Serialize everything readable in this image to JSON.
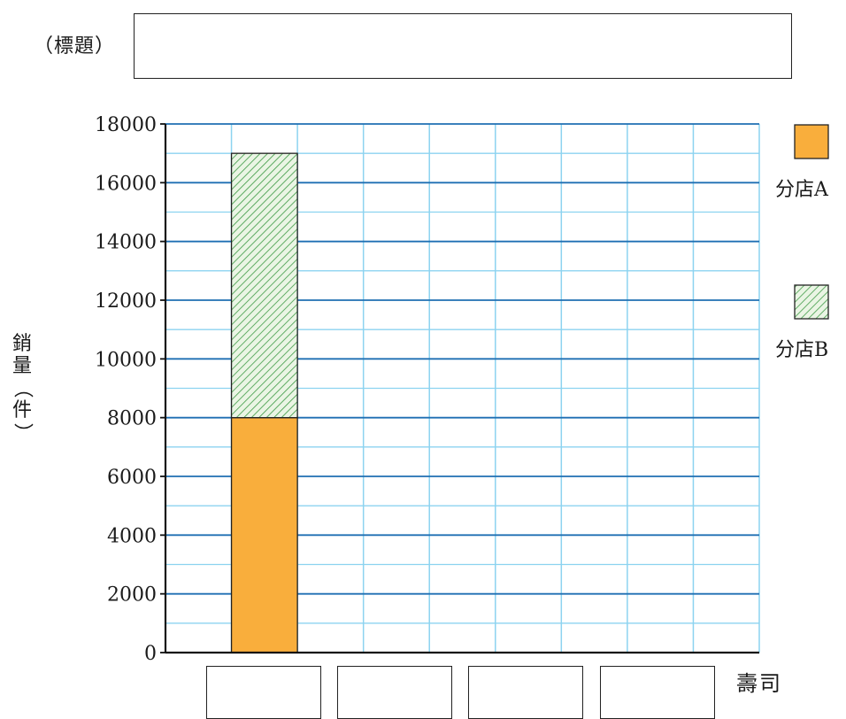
{
  "title_label": "（標題）",
  "title_value": "",
  "ylabel_chars": [
    "銷",
    "量",
    "（",
    "件",
    "）"
  ],
  "xlabel": "壽司",
  "colors": {
    "store_a": "#F9AE3C",
    "store_b_hatch": "#3E9A45",
    "store_b_bg": "#EAF5E4",
    "major_grid": "#1F6FB3",
    "minor_grid": "#8CD3F0",
    "axis": "#111111"
  },
  "chart_data": {
    "type": "bar",
    "stacked": true,
    "xlabel": "壽司",
    "ylabel": "銷量（件）",
    "ylim": [
      0,
      18000
    ],
    "yticks": [
      "0",
      "2000",
      "4000",
      "6000",
      "8000",
      "10000",
      "12000",
      "14000",
      "16000",
      "18000"
    ],
    "categories": [
      "",
      "",
      "",
      ""
    ],
    "series": [
      {
        "name": "分店A",
        "values": [
          8000,
          null,
          null,
          null
        ]
      },
      {
        "name": "分店B",
        "values": [
          9000,
          null,
          null,
          null
        ]
      }
    ],
    "grid": true,
    "legend_position": "right"
  }
}
